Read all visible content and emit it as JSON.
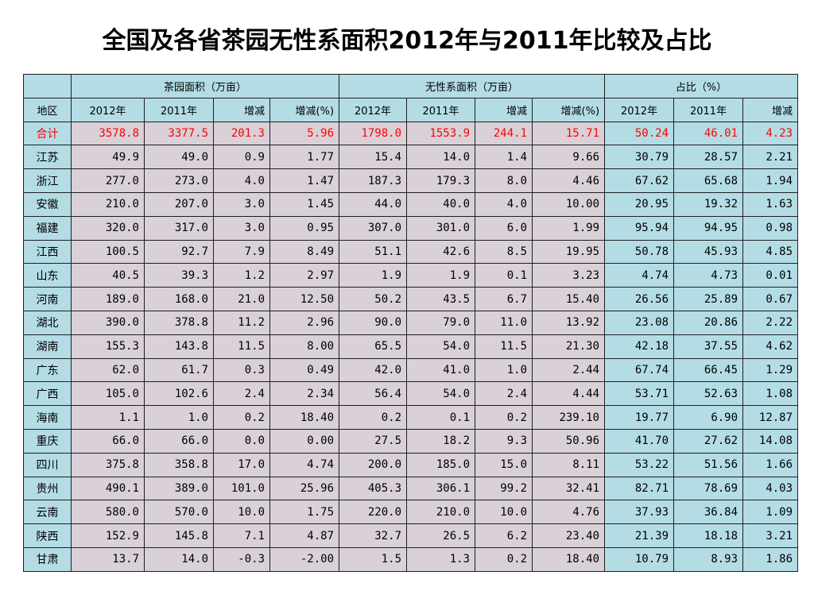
{
  "title": "全国及各省茶园无性系面积2012年与2011年比较及占比",
  "groups": [
    "",
    "茶园面积（万亩）",
    "无性系面积（万亩）",
    "占比（%）"
  ],
  "subheaders": [
    "地区",
    "2012年",
    "2011年",
    "增减",
    "增减(%)",
    "2012年",
    "2011年",
    "增减",
    "增减(%)",
    "2012年",
    "2011年",
    "增减"
  ],
  "rows": [
    [
      "合计",
      "3578.8",
      "3377.5",
      "201.3",
      "5.96",
      "1798.0",
      "1553.9",
      "244.1",
      "15.71",
      "50.24",
      "46.01",
      "4.23"
    ],
    [
      "江苏",
      "49.9",
      "49.0",
      "0.9",
      "1.77",
      "15.4",
      "14.0",
      "1.4",
      "9.66",
      "30.79",
      "28.57",
      "2.21"
    ],
    [
      "浙江",
      "277.0",
      "273.0",
      "4.0",
      "1.47",
      "187.3",
      "179.3",
      "8.0",
      "4.46",
      "67.62",
      "65.68",
      "1.94"
    ],
    [
      "安徽",
      "210.0",
      "207.0",
      "3.0",
      "1.45",
      "44.0",
      "40.0",
      "4.0",
      "10.00",
      "20.95",
      "19.32",
      "1.63"
    ],
    [
      "福建",
      "320.0",
      "317.0",
      "3.0",
      "0.95",
      "307.0",
      "301.0",
      "6.0",
      "1.99",
      "95.94",
      "94.95",
      "0.98"
    ],
    [
      "江西",
      "100.5",
      "92.7",
      "7.9",
      "8.49",
      "51.1",
      "42.6",
      "8.5",
      "19.95",
      "50.78",
      "45.93",
      "4.85"
    ],
    [
      "山东",
      "40.5",
      "39.3",
      "1.2",
      "2.97",
      "1.9",
      "1.9",
      "0.1",
      "3.23",
      "4.74",
      "4.73",
      "0.01"
    ],
    [
      "河南",
      "189.0",
      "168.0",
      "21.0",
      "12.50",
      "50.2",
      "43.5",
      "6.7",
      "15.40",
      "26.56",
      "25.89",
      "0.67"
    ],
    [
      "湖北",
      "390.0",
      "378.8",
      "11.2",
      "2.96",
      "90.0",
      "79.0",
      "11.0",
      "13.92",
      "23.08",
      "20.86",
      "2.22"
    ],
    [
      "湖南",
      "155.3",
      "143.8",
      "11.5",
      "8.00",
      "65.5",
      "54.0",
      "11.5",
      "21.30",
      "42.18",
      "37.55",
      "4.62"
    ],
    [
      "广东",
      "62.0",
      "61.7",
      "0.3",
      "0.49",
      "42.0",
      "41.0",
      "1.0",
      "2.44",
      "67.74",
      "66.45",
      "1.29"
    ],
    [
      "广西",
      "105.0",
      "102.6",
      "2.4",
      "2.34",
      "56.4",
      "54.0",
      "2.4",
      "4.44",
      "53.71",
      "52.63",
      "1.08"
    ],
    [
      "海南",
      "1.1",
      "1.0",
      "0.2",
      "18.40",
      "0.2",
      "0.1",
      "0.2",
      "239.10",
      "19.77",
      "6.90",
      "12.87"
    ],
    [
      "重庆",
      "66.0",
      "66.0",
      "0.0",
      "0.00",
      "27.5",
      "18.2",
      "9.3",
      "50.96",
      "41.70",
      "27.62",
      "14.08"
    ],
    [
      "四川",
      "375.8",
      "358.8",
      "17.0",
      "4.74",
      "200.0",
      "185.0",
      "15.0",
      "8.11",
      "53.22",
      "51.56",
      "1.66"
    ],
    [
      "贵州",
      "490.1",
      "389.0",
      "101.0",
      "25.96",
      "405.3",
      "306.1",
      "99.2",
      "32.41",
      "82.71",
      "78.69",
      "4.03"
    ],
    [
      "云南",
      "580.0",
      "570.0",
      "10.0",
      "1.75",
      "220.0",
      "210.0",
      "10.0",
      "4.76",
      "37.93",
      "36.84",
      "1.09"
    ],
    [
      "陕西",
      "152.9",
      "145.8",
      "7.1",
      "4.87",
      "32.7",
      "26.5",
      "6.2",
      "23.40",
      "21.39",
      "18.18",
      "3.21"
    ],
    [
      "甘肃",
      "13.7",
      "14.0",
      "-0.3",
      "-2.00",
      "1.5",
      "1.3",
      "0.2",
      "18.40",
      "10.79",
      "8.93",
      "1.86"
    ]
  ],
  "colors": {
    "header_bg": "#b4dce4",
    "cell_bg": "#d9d0d8",
    "total_text": "#ff0000"
  }
}
